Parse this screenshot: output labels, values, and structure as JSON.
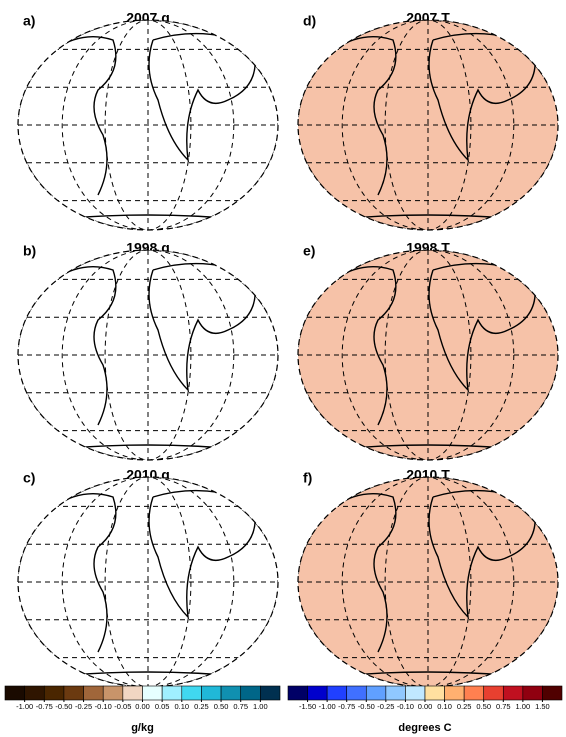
{
  "panels": [
    {
      "label": "a)",
      "title": "2007 q"
    },
    {
      "label": "b)",
      "title": "1998 q"
    },
    {
      "label": "c)",
      "title": "2010 q"
    },
    {
      "label": "d)",
      "title": "2007 T"
    },
    {
      "label": "e)",
      "title": "1998 T"
    },
    {
      "label": "f)",
      "title": "2010 T"
    }
  ],
  "colorbars": [
    {
      "unit": "g/kg",
      "colors": [
        "#1a0a00",
        "#2f1500",
        "#4a2600",
        "#6b3a10",
        "#a0663a",
        "#c8946a",
        "#f1d6c3",
        "#e6ffff",
        "#a0f0ff",
        "#40d8f0",
        "#20b8d8",
        "#1090b0",
        "#006688",
        "#003050"
      ],
      "ticks": [
        {
          "value": -1,
          "label": "-1.00"
        },
        {
          "value": -0.75,
          "label": "-0.75"
        },
        {
          "value": -0.5,
          "label": "-0.50"
        },
        {
          "value": -0.25,
          "label": "-0.25"
        },
        {
          "value": -0.1,
          "label": "-0.10"
        },
        {
          "value": -0.05,
          "label": "-0.05"
        },
        {
          "value": 0,
          "label": "0.00"
        },
        {
          "value": 0.05,
          "label": "0.05"
        },
        {
          "value": 0.1,
          "label": "0.10"
        },
        {
          "value": 0.25,
          "label": "0.25"
        },
        {
          "value": 0.5,
          "label": "0.50"
        },
        {
          "value": 0.75,
          "label": "0.75"
        },
        {
          "value": 1,
          "label": "1.00"
        }
      ]
    },
    {
      "unit": "degrees C",
      "colors": [
        "#000066",
        "#0000cc",
        "#2040ff",
        "#4070ff",
        "#60a0ff",
        "#90c8ff",
        "#c0e8ff",
        "#ffe0a0",
        "#ffb070",
        "#ff8050",
        "#e84030",
        "#c01020",
        "#900010",
        "#500000"
      ],
      "ticks": [
        {
          "value": -1.5,
          "label": "-1.50"
        },
        {
          "value": -1,
          "label": "-1.00"
        },
        {
          "value": -0.75,
          "label": "-0.75"
        },
        {
          "value": -0.5,
          "label": "-0.50"
        },
        {
          "value": -0.25,
          "label": "-0.25"
        },
        {
          "value": -0.1,
          "label": "-0.10"
        },
        {
          "value": 0,
          "label": "0.00"
        },
        {
          "value": 0.1,
          "label": "0.10"
        },
        {
          "value": 0.25,
          "label": "0.25"
        },
        {
          "value": 0.5,
          "label": "0.50"
        },
        {
          "value": 0.75,
          "label": "0.75"
        },
        {
          "value": 1,
          "label": "1.00"
        },
        {
          "value": 1.5,
          "label": "1.50"
        }
      ]
    }
  ]
}
